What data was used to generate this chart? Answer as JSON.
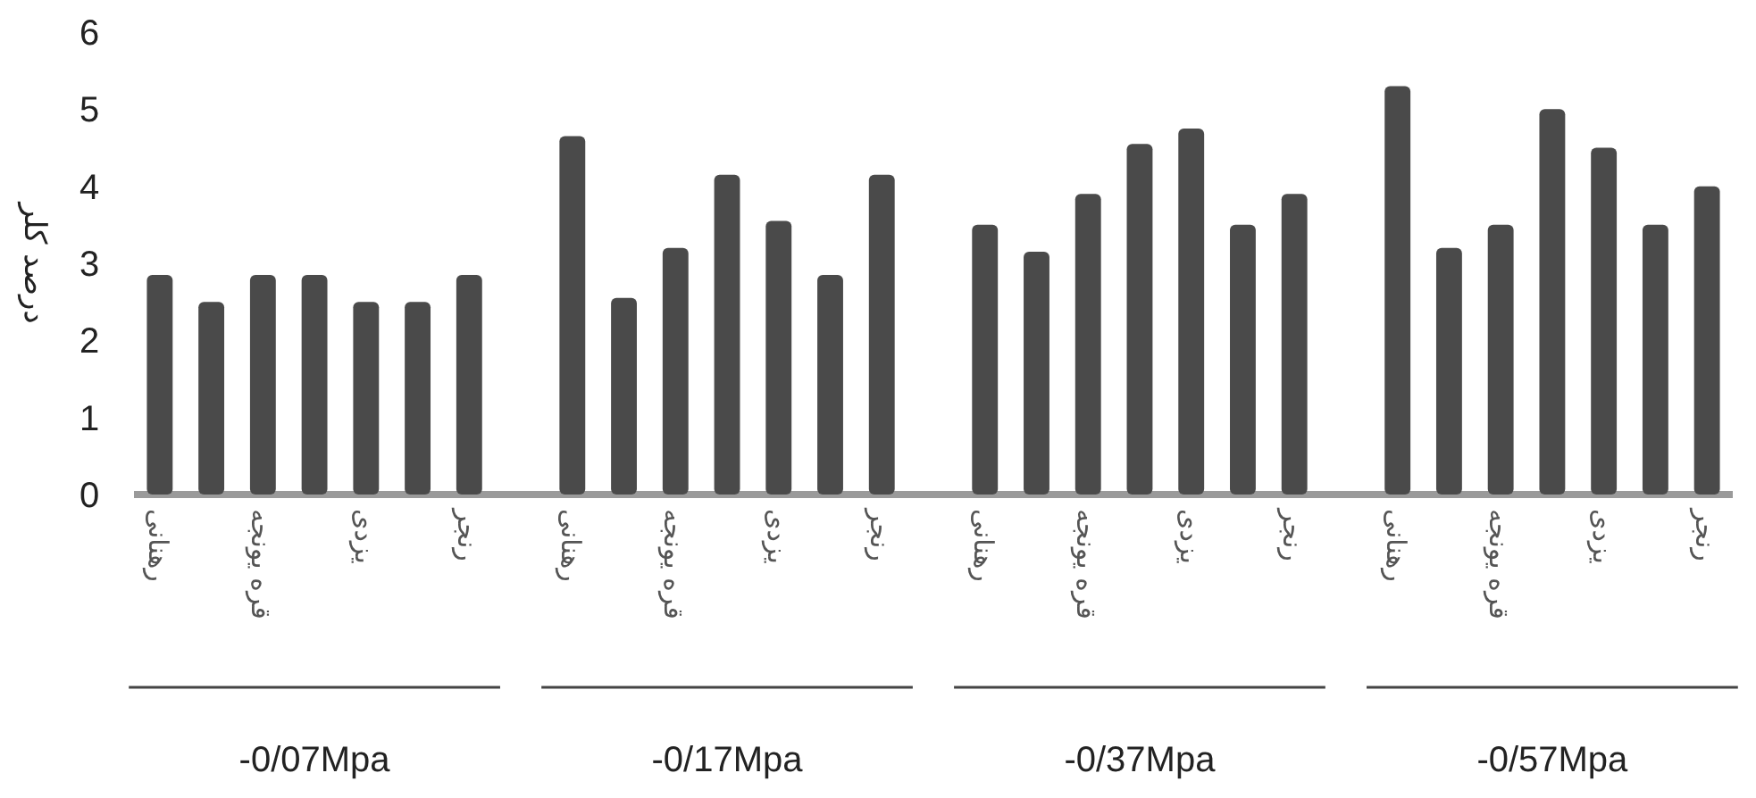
{
  "chart_data": {
    "type": "bar",
    "ylabel": "درصد کلر",
    "categories": [
      "رهنانی",
      null,
      "قره یونجه",
      null,
      "یزدی",
      null,
      "رنجر",
      null,
      "رهنانی",
      null,
      "قره یونجه",
      null,
      "یزدی",
      null,
      "رنجر",
      null,
      "رهنانی",
      null,
      "قره یونجه",
      null,
      "یزدی",
      null,
      "رنجر",
      null,
      "رهنانی",
      null,
      "قره یونجه",
      null,
      "یزدی",
      null,
      "رنجر"
    ],
    "values": [
      2.85,
      2.5,
      2.85,
      2.85,
      2.5,
      2.5,
      2.85,
      null,
      4.65,
      2.55,
      3.2,
      4.15,
      3.55,
      2.85,
      4.15,
      null,
      3.5,
      3.15,
      3.9,
      4.55,
      4.75,
      3.5,
      3.9,
      null,
      5.3,
      3.2,
      3.5,
      5.0,
      4.5,
      3.5,
      4.0
    ],
    "color": "#4a4a4a",
    "ylim": [
      0,
      6
    ],
    "yticks": [
      0,
      1,
      2,
      3,
      4,
      5,
      6
    ],
    "annotations": [
      "-0/07Mpa",
      "-0/17Mpa",
      "-0/37Mpa",
      "-0/57Mpa"
    ]
  }
}
